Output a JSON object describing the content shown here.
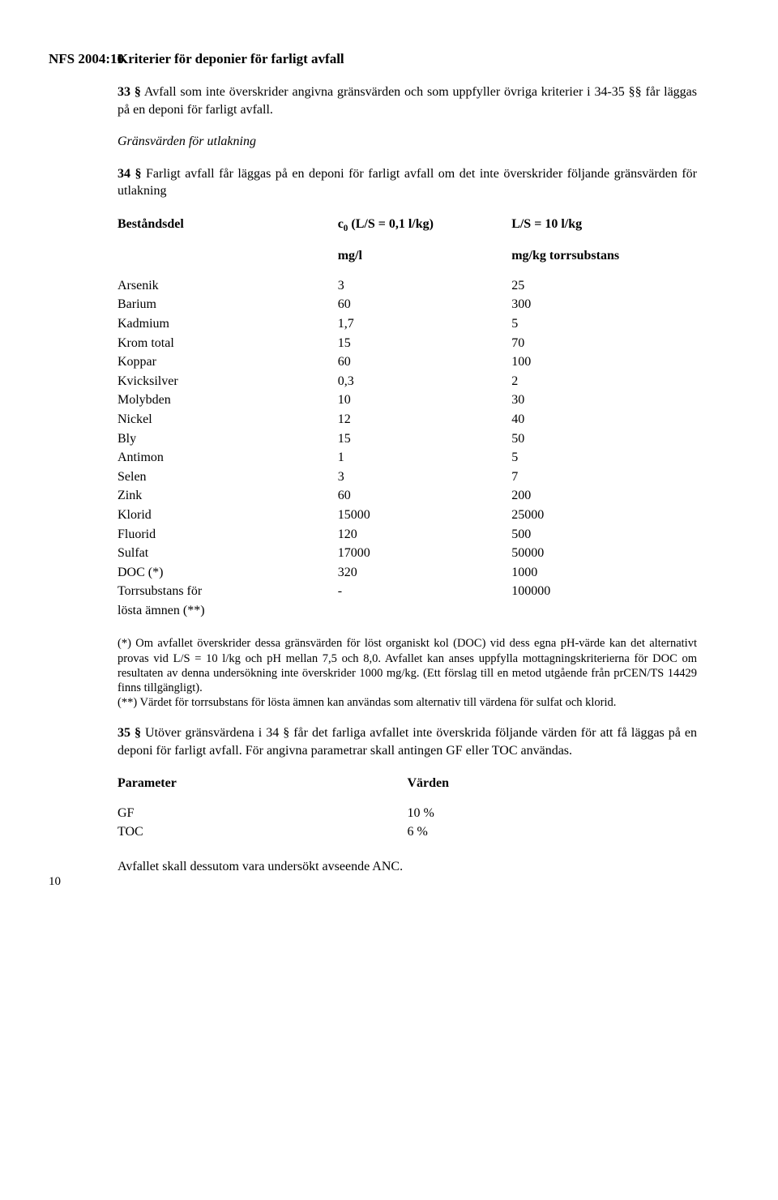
{
  "doc_id": "NFS 2004:10",
  "title": "Kriterier för deponier för farligt avfall",
  "para_33_bold": "33 §",
  "para_33_rest": " Avfall som inte överskrider angivna gränsvärden och som uppfyller övriga kriterier i 34-35 §§ får läggas på en deponi för farligt avfall.",
  "italic_heading": "Gränsvärden för utlakning",
  "para_34_bold": "34 §",
  "para_34_rest": " Farligt avfall får läggas på en deponi för farligt avfall om det inte överskrider följande gränsvärden för utlakning",
  "tbl": {
    "head": {
      "c1": "Beståndsdel",
      "c2a": "c",
      "c2sub": "0",
      "c2b": " (L/S = 0,1 l/kg)",
      "c2line2": "mg/l",
      "c3a": "L/S = 10  l/kg",
      "c3line2": "mg/kg torrsubstans"
    },
    "rows": [
      {
        "n": "Arsenik",
        "a": "3",
        "b": "25"
      },
      {
        "n": "Barium",
        "a": "60",
        "b": "300"
      },
      {
        "n": "Kadmium",
        "a": "1,7",
        "b": "5"
      },
      {
        "n": "Krom total",
        "a": "15",
        "b": "70"
      },
      {
        "n": "Koppar",
        "a": "60",
        "b": "100"
      },
      {
        "n": "Kvicksilver",
        "a": "0,3",
        "b": "2"
      },
      {
        "n": "Molybden",
        "a": "10",
        "b": "30"
      },
      {
        "n": "Nickel",
        "a": "12",
        "b": "40"
      },
      {
        "n": "Bly",
        "a": "15",
        "b": "50"
      },
      {
        "n": "Antimon",
        "a": "1",
        "b": "5"
      },
      {
        "n": "Selen",
        "a": "3",
        "b": "7"
      },
      {
        "n": "Zink",
        "a": "60",
        "b": "200"
      },
      {
        "n": "Klorid",
        "a": "15000",
        "b": "25000"
      },
      {
        "n": "Fluorid",
        "a": "120",
        "b": "500"
      },
      {
        "n": "Sulfat",
        "a": "17000",
        "b": "50000"
      },
      {
        "n": "DOC (*)",
        "a": "320",
        "b": "1000"
      },
      {
        "n": "Torrsubstans för",
        "a": "-",
        "b": "100000"
      },
      {
        "n": "lösta ämnen (**)",
        "a": "",
        "b": ""
      }
    ]
  },
  "footnote1": "(*) Om avfallet överskrider dessa gränsvärden för löst organiskt kol (DOC) vid dess egna pH-värde kan det alternativt provas vid L/S = 10 l/kg och pH mellan 7,5 och 8,0. Avfallet kan anses uppfylla mottagningskriterierna för DOC om resultaten av denna undersökning inte överskrider 1000 mg/kg. (Ett förslag till en metod utgående från prCEN/TS 14429 finns tillgängligt).",
  "footnote2": " (**) Värdet för torrsubstans för lösta ämnen kan användas som alternativ till värdena för sulfat och klorid.",
  "para_35_bold": "35 §",
  "para_35_rest": " Utöver gränsvärdena i 34 § får det farliga avfallet inte överskrida följande värden för att få läggas på en deponi för farligt avfall. För angivna parametrar skall antingen GF eller TOC användas.",
  "param": {
    "h1": "Parameter",
    "h2": "Värden",
    "rows": [
      {
        "p": "GF",
        "v": "10 %"
      },
      {
        "p": "TOC",
        "v": "6 %"
      }
    ]
  },
  "closing": "Avfallet skall dessutom vara undersökt avseende ANC.",
  "page_number": "10"
}
